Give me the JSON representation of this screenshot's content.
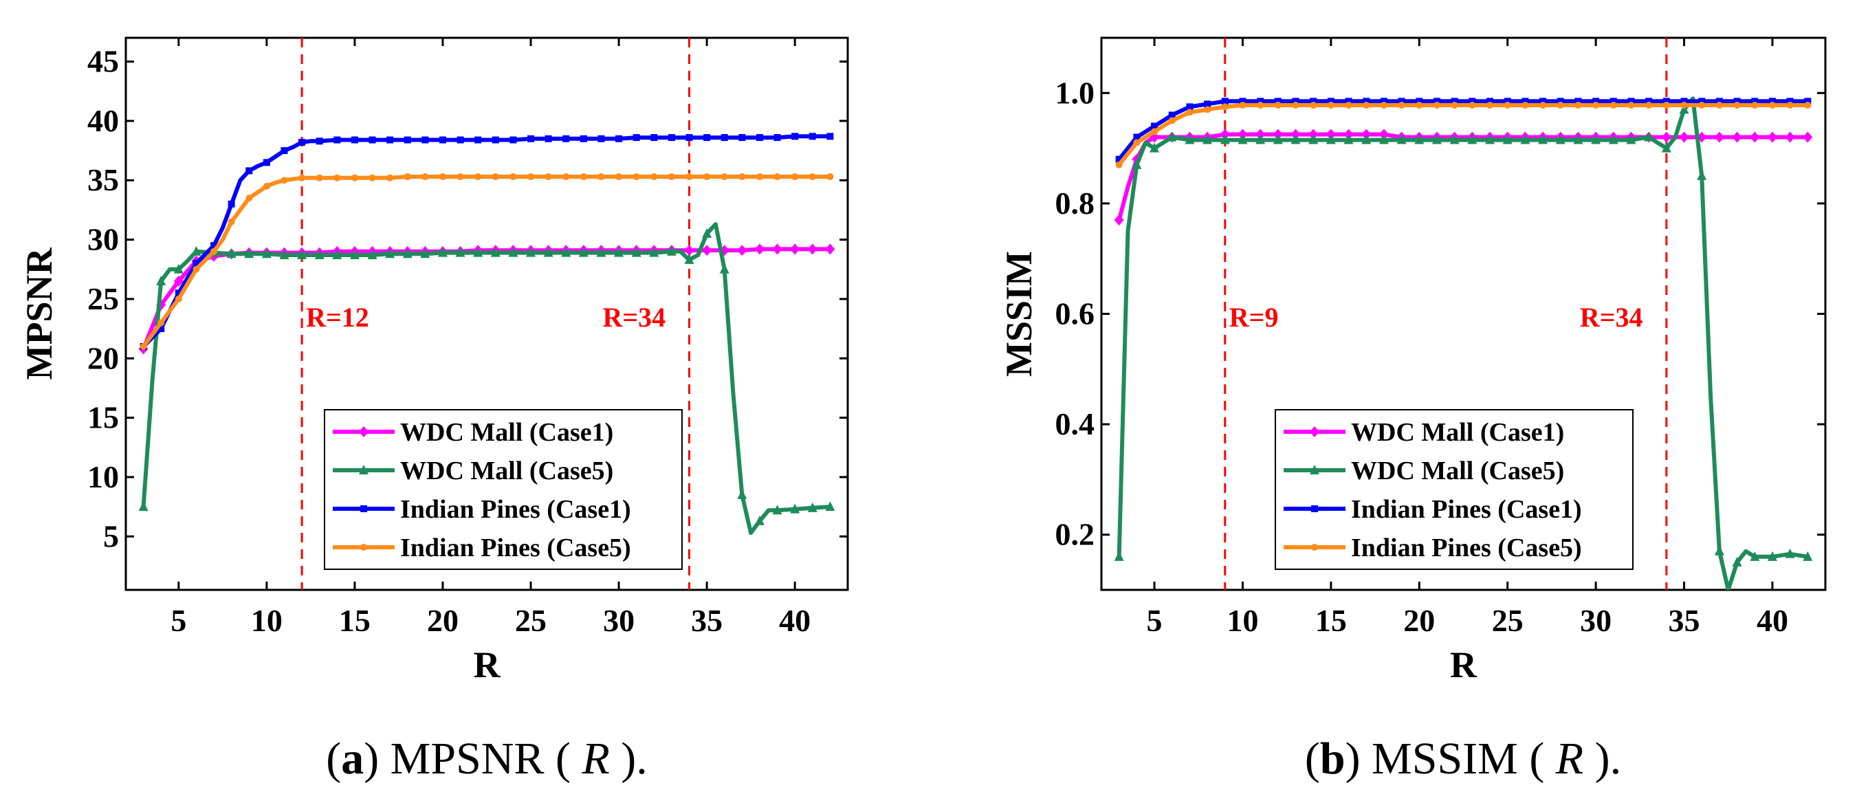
{
  "colors": {
    "wdc_case1": "#ff00ff",
    "wdc_case5": "#1e8c5a",
    "ip_case1": "#0000ff",
    "ip_case5": "#ff8c1a",
    "vline": "#ff0000"
  },
  "chart_data": [
    {
      "type": "line",
      "ylabel": "MPSNR",
      "xlabel": "R",
      "xlim": [
        2,
        43
      ],
      "ylim": [
        0.5,
        47
      ],
      "xticks": [
        5,
        10,
        15,
        20,
        25,
        30,
        35,
        40
      ],
      "yticks": [
        5,
        10,
        15,
        20,
        25,
        30,
        35,
        40,
        45
      ],
      "ytick_labels": [
        "5",
        "10",
        "15",
        "20",
        "25",
        "30",
        "35",
        "40",
        "45"
      ],
      "grid": false,
      "legend_position": "bottom-center",
      "vlines": [
        {
          "x": 12,
          "label": "R=12"
        },
        {
          "x": 34,
          "label": "R=34"
        }
      ],
      "caption": {
        "letter": "a",
        "text": "MPSNR (",
        "var": "R",
        "tail": ")."
      },
      "series": [
        {
          "name": "WDC Mall (Case1)",
          "color_key": "wdc_case1",
          "marker": "diamond",
          "x": [
            3,
            4,
            5,
            6,
            7,
            8,
            9,
            10,
            11,
            12,
            13,
            14,
            15,
            16,
            17,
            18,
            19,
            20,
            21,
            22,
            23,
            24,
            25,
            26,
            27,
            28,
            29,
            30,
            31,
            32,
            33,
            34,
            35,
            36,
            37,
            38,
            39,
            40,
            41,
            42
          ],
          "y": [
            20.8,
            24.5,
            26.5,
            28.2,
            28.6,
            28.8,
            28.9,
            28.9,
            28.9,
            28.9,
            28.9,
            29.0,
            29.0,
            29.0,
            29.0,
            29.0,
            29.0,
            29.0,
            29.0,
            29.1,
            29.1,
            29.1,
            29.1,
            29.1,
            29.1,
            29.1,
            29.1,
            29.1,
            29.1,
            29.1,
            29.1,
            29.1,
            29.1,
            29.1,
            29.1,
            29.2,
            29.2,
            29.2,
            29.2,
            29.2
          ]
        },
        {
          "name": "WDC Mall (Case5)",
          "color_key": "wdc_case5",
          "marker": "triangle",
          "x": [
            3,
            3.5,
            4,
            4.5,
            5,
            5.5,
            6,
            7,
            8,
            9,
            10,
            11,
            12,
            13,
            14,
            15,
            16,
            17,
            18,
            19,
            20,
            21,
            22,
            23,
            24,
            25,
            26,
            27,
            28,
            29,
            30,
            31,
            32,
            33,
            33.5,
            34,
            34.5,
            35,
            35.5,
            36,
            36.5,
            37,
            37.5,
            38,
            38.5,
            39,
            40,
            41,
            42
          ],
          "y": [
            7.5,
            18,
            26.5,
            27.5,
            27.5,
            28.2,
            29.0,
            28.9,
            28.8,
            28.8,
            28.8,
            28.7,
            28.7,
            28.7,
            28.7,
            28.7,
            28.7,
            28.8,
            28.8,
            28.8,
            28.9,
            28.9,
            28.9,
            28.9,
            28.9,
            28.9,
            28.9,
            28.9,
            28.9,
            28.9,
            28.9,
            28.9,
            28.9,
            29.0,
            29.0,
            28.3,
            28.7,
            30.5,
            31.3,
            27.5,
            17,
            8.5,
            5.3,
            6.3,
            7.2,
            7.2,
            7.3,
            7.4,
            7.5
          ]
        },
        {
          "name": "Indian Pines (Case1)",
          "color_key": "ip_case1",
          "marker": "square",
          "x": [
            3,
            4,
            5,
            6,
            7,
            7.5,
            8,
            8.5,
            9,
            9.5,
            10,
            10.5,
            11,
            11.5,
            12,
            12.5,
            13,
            14,
            15,
            16,
            17,
            18,
            19,
            20,
            21,
            22,
            23,
            24,
            25,
            26,
            27,
            28,
            29,
            30,
            31,
            32,
            33,
            34,
            35,
            36,
            37,
            38,
            39,
            40,
            41,
            42
          ],
          "y": [
            21.0,
            22.5,
            25.5,
            28.0,
            29.5,
            31.0,
            33.0,
            35.0,
            35.8,
            36.2,
            36.5,
            37.0,
            37.5,
            37.8,
            38.2,
            38.3,
            38.3,
            38.4,
            38.4,
            38.4,
            38.4,
            38.4,
            38.4,
            38.4,
            38.4,
            38.4,
            38.4,
            38.4,
            38.5,
            38.5,
            38.5,
            38.5,
            38.5,
            38.5,
            38.6,
            38.6,
            38.6,
            38.6,
            38.6,
            38.6,
            38.6,
            38.6,
            38.6,
            38.7,
            38.7,
            38.7
          ]
        },
        {
          "name": "Indian Pines (Case5)",
          "color_key": "ip_case5",
          "marker": "circle",
          "x": [
            3,
            4,
            5,
            6,
            7,
            7.5,
            8,
            8.5,
            9,
            9.5,
            10,
            10.5,
            11,
            11.5,
            12,
            13,
            14,
            15,
            16,
            17,
            18,
            19,
            20,
            21,
            22,
            23,
            24,
            25,
            26,
            27,
            28,
            29,
            30,
            31,
            32,
            33,
            34,
            35,
            36,
            37,
            38,
            39,
            40,
            41,
            42
          ],
          "y": [
            21.0,
            23.0,
            25.0,
            27.5,
            29.0,
            30.0,
            31.5,
            32.5,
            33.5,
            34.0,
            34.5,
            34.8,
            35.0,
            35.1,
            35.2,
            35.2,
            35.2,
            35.2,
            35.2,
            35.2,
            35.3,
            35.3,
            35.3,
            35.3,
            35.3,
            35.3,
            35.3,
            35.3,
            35.3,
            35.3,
            35.3,
            35.3,
            35.3,
            35.3,
            35.3,
            35.3,
            35.3,
            35.3,
            35.3,
            35.3,
            35.3,
            35.3,
            35.3,
            35.3,
            35.3
          ]
        }
      ]
    },
    {
      "type": "line",
      "ylabel": "MSSIM",
      "xlabel": "R",
      "xlim": [
        2,
        43
      ],
      "ylim": [
        0.1,
        1.1
      ],
      "xticks": [
        5,
        10,
        15,
        20,
        25,
        30,
        35,
        40
      ],
      "yticks": [
        0.2,
        0.4,
        0.6,
        0.8,
        1.0
      ],
      "ytick_labels": [
        "0.2",
        "0.4",
        "0.6",
        "0.8",
        "1.0"
      ],
      "grid": false,
      "legend_position": "bottom-center",
      "vlines": [
        {
          "x": 9,
          "label": "R=9"
        },
        {
          "x": 34,
          "label": "R=34"
        }
      ],
      "caption": {
        "letter": "b",
        "text": "MSSIM (",
        "var": "R",
        "tail": ")."
      },
      "series": [
        {
          "name": "WDC Mall (Case1)",
          "color_key": "wdc_case1",
          "marker": "diamond",
          "x": [
            3,
            3.5,
            4,
            4.5,
            5,
            6,
            7,
            8,
            9,
            10,
            11,
            12,
            13,
            14,
            15,
            16,
            17,
            18,
            19,
            20,
            21,
            22,
            23,
            24,
            25,
            26,
            27,
            28,
            29,
            30,
            31,
            32,
            33,
            34,
            35,
            36,
            37,
            38,
            39,
            40,
            41,
            42
          ],
          "y": [
            0.77,
            0.83,
            0.88,
            0.91,
            0.92,
            0.92,
            0.92,
            0.92,
            0.925,
            0.925,
            0.925,
            0.925,
            0.925,
            0.925,
            0.925,
            0.925,
            0.925,
            0.925,
            0.92,
            0.92,
            0.92,
            0.92,
            0.92,
            0.92,
            0.92,
            0.92,
            0.92,
            0.92,
            0.92,
            0.92,
            0.92,
            0.92,
            0.92,
            0.92,
            0.92,
            0.92,
            0.92,
            0.92,
            0.92,
            0.92,
            0.92,
            0.92
          ]
        },
        {
          "name": "WDC Mall (Case5)",
          "color_key": "wdc_case5",
          "marker": "triangle",
          "x": [
            3,
            3.5,
            4,
            4.5,
            5,
            5.5,
            6,
            7,
            8,
            9,
            10,
            11,
            12,
            13,
            14,
            15,
            16,
            17,
            18,
            19,
            20,
            21,
            22,
            23,
            24,
            25,
            26,
            27,
            28,
            29,
            30,
            31,
            32,
            33,
            33.5,
            34,
            34.5,
            35,
            35.5,
            36,
            36.5,
            37,
            37.5,
            38,
            38.5,
            39,
            40,
            41,
            42
          ],
          "y": [
            0.16,
            0.75,
            0.87,
            0.91,
            0.9,
            0.91,
            0.92,
            0.915,
            0.915,
            0.915,
            0.915,
            0.915,
            0.915,
            0.915,
            0.915,
            0.915,
            0.915,
            0.915,
            0.915,
            0.915,
            0.915,
            0.915,
            0.915,
            0.915,
            0.915,
            0.915,
            0.915,
            0.915,
            0.915,
            0.915,
            0.915,
            0.915,
            0.915,
            0.92,
            0.91,
            0.9,
            0.92,
            0.97,
            0.99,
            0.85,
            0.45,
            0.17,
            0.1,
            0.15,
            0.17,
            0.16,
            0.16,
            0.165,
            0.16
          ]
        },
        {
          "name": "Indian Pines (Case1)",
          "color_key": "ip_case1",
          "marker": "square",
          "x": [
            3,
            4,
            5,
            6,
            7,
            8,
            9,
            10,
            11,
            12,
            13,
            14,
            15,
            16,
            17,
            18,
            19,
            20,
            21,
            22,
            23,
            24,
            25,
            26,
            27,
            28,
            29,
            30,
            31,
            32,
            33,
            34,
            35,
            36,
            37,
            38,
            39,
            40,
            41,
            42
          ],
          "y": [
            0.88,
            0.92,
            0.94,
            0.96,
            0.975,
            0.98,
            0.985,
            0.985,
            0.985,
            0.985,
            0.985,
            0.985,
            0.985,
            0.985,
            0.985,
            0.985,
            0.985,
            0.985,
            0.985,
            0.985,
            0.985,
            0.985,
            0.985,
            0.985,
            0.985,
            0.985,
            0.985,
            0.985,
            0.985,
            0.985,
            0.985,
            0.985,
            0.985,
            0.985,
            0.985,
            0.985,
            0.985,
            0.985,
            0.985,
            0.985
          ]
        },
        {
          "name": "Indian Pines (Case5)",
          "color_key": "ip_case5",
          "marker": "circle",
          "x": [
            3,
            4,
            5,
            6,
            7,
            8,
            9,
            10,
            11,
            12,
            13,
            14,
            15,
            16,
            17,
            18,
            19,
            20,
            21,
            22,
            23,
            24,
            25,
            26,
            27,
            28,
            29,
            30,
            31,
            32,
            33,
            34,
            35,
            36,
            37,
            38,
            39,
            40,
            41,
            42
          ],
          "y": [
            0.87,
            0.91,
            0.93,
            0.95,
            0.965,
            0.97,
            0.975,
            0.978,
            0.978,
            0.978,
            0.978,
            0.978,
            0.978,
            0.978,
            0.978,
            0.978,
            0.978,
            0.978,
            0.978,
            0.978,
            0.978,
            0.978,
            0.978,
            0.978,
            0.978,
            0.978,
            0.978,
            0.978,
            0.978,
            0.978,
            0.978,
            0.978,
            0.978,
            0.978,
            0.978,
            0.978,
            0.978,
            0.978,
            0.978,
            0.978
          ]
        }
      ]
    }
  ]
}
